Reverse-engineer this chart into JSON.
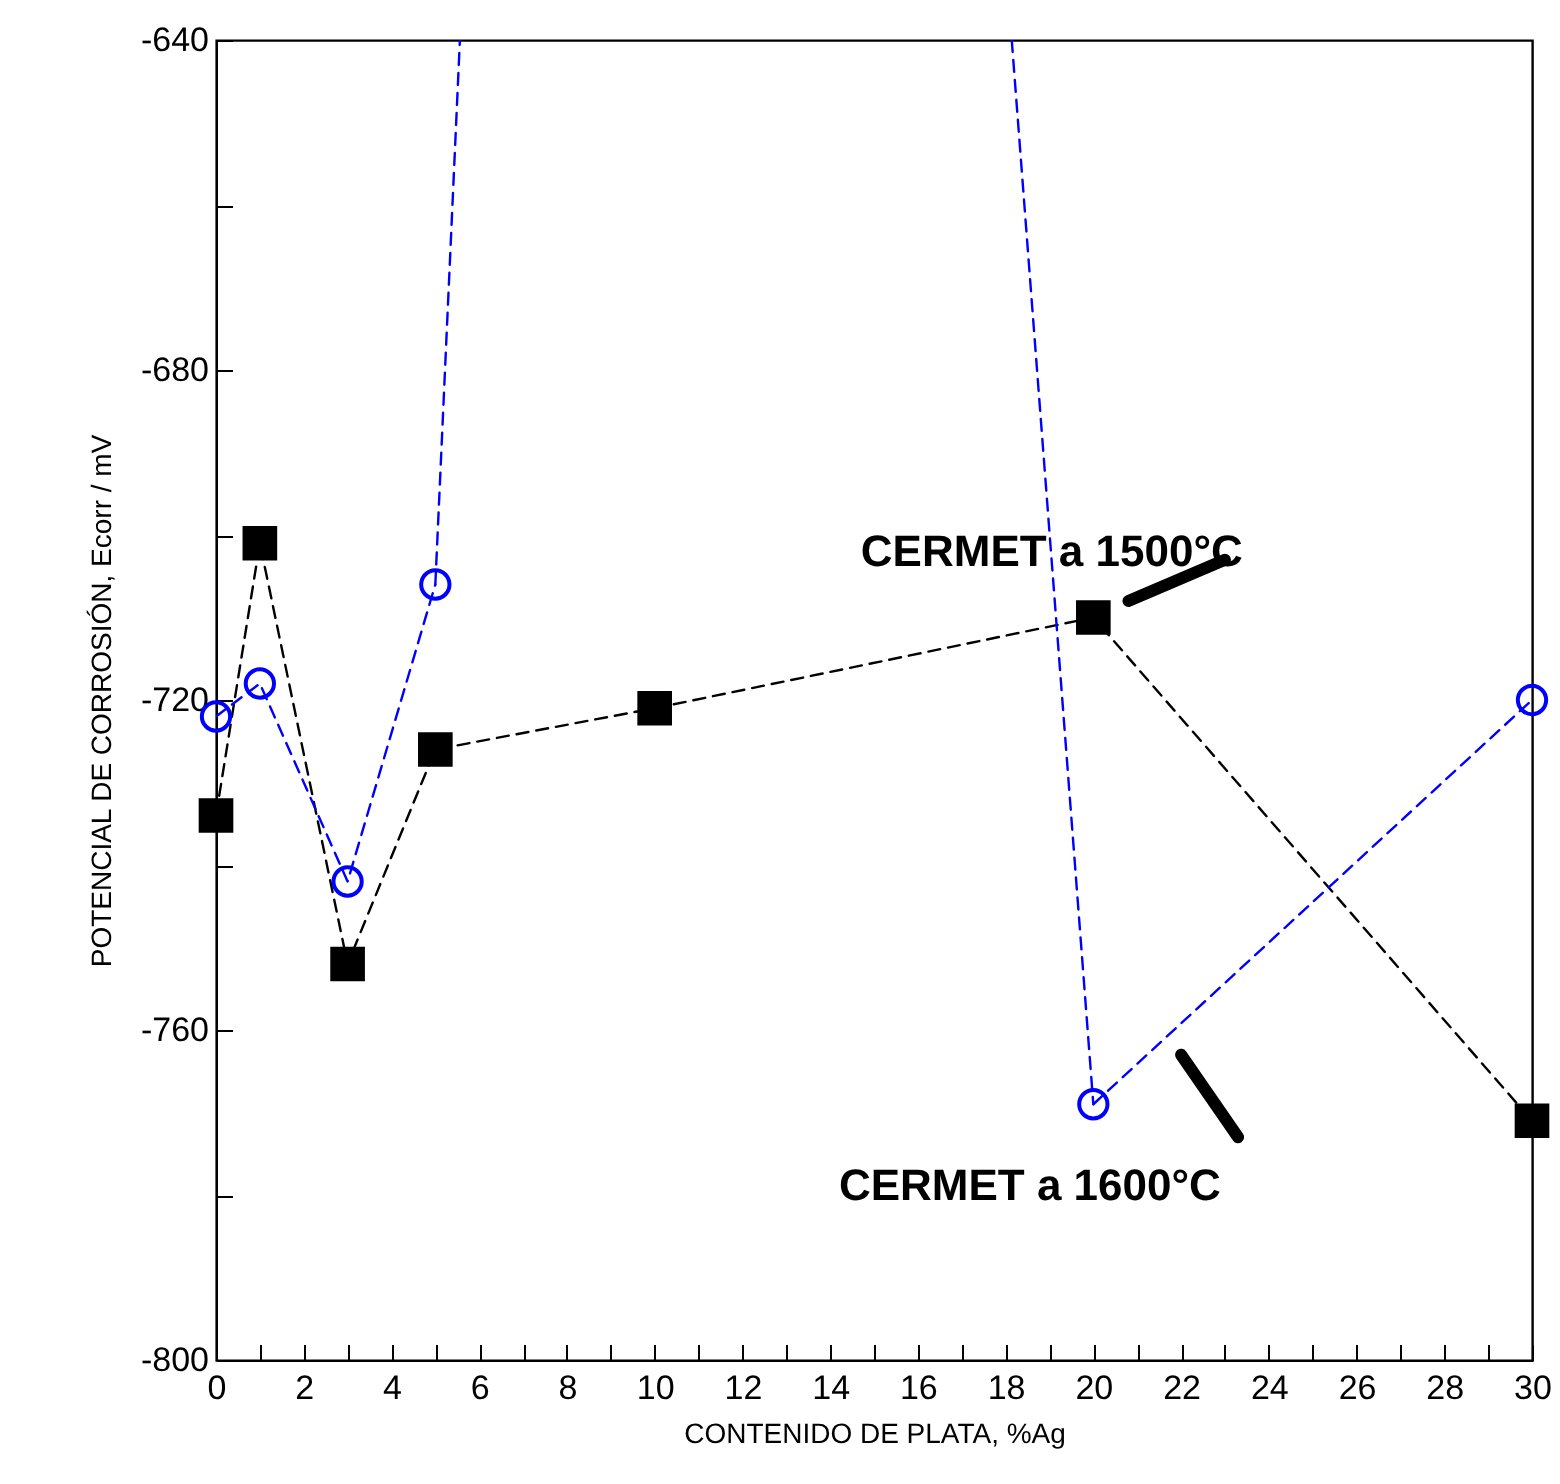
{
  "chart_data": {
    "type": "line",
    "xlabel": "CONTENIDO DE PLATA, %Ag",
    "ylabel": "POTENCIAL DE CORROSIÓN, Ecorr / mV",
    "xlim": [
      0,
      30
    ],
    "xticks": [
      0,
      {
        "value": 1,
        "label": null
      },
      2,
      {
        "value": 3,
        "label": null
      },
      4,
      {
        "value": 5,
        "label": null
      },
      6,
      {
        "value": 7,
        "label": null
      },
      8,
      {
        "value": 9,
        "label": null
      },
      10,
      {
        "value": 11,
        "label": null
      },
      12,
      {
        "value": 13,
        "label": null
      },
      14,
      {
        "value": 15,
        "label": null
      },
      16,
      {
        "value": 17,
        "label": null
      },
      18,
      {
        "value": 19,
        "label": null
      },
      20,
      {
        "value": 21,
        "label": null
      },
      22,
      {
        "value": 23,
        "label": null
      },
      24,
      {
        "value": 25,
        "label": null
      },
      26,
      {
        "value": 27,
        "label": null
      },
      28,
      {
        "value": 29,
        "label": null
      },
      30
    ],
    "ylim": [
      -800,
      -640
    ],
    "yticks": [
      -800,
      {
        "value": -780,
        "label": null
      },
      -760,
      {
        "value": -740,
        "label": null
      },
      -720,
      {
        "value": -700,
        "label": null
      },
      -680,
      {
        "value": -660,
        "label": null
      },
      -640
    ],
    "grid": false,
    "series": [
      {
        "color": "#000000",
        "marker": "square",
        "line_style": "dashed",
        "x": [
          0,
          1,
          3,
          5,
          10,
          20,
          30
        ],
        "values": [
          -734,
          -701,
          -752,
          -726,
          -721,
          -710,
          -771
        ]
      },
      {
        "color": "#0000ff",
        "marker": "circle",
        "line_style": "dashed",
        "x": [
          0,
          1,
          3,
          5,
          10,
          20,
          30
        ],
        "values": [
          -722,
          -718,
          -742,
          -706,
          null,
          -769,
          -720
        ]
      },
      {
        "color": "#0000ff",
        "marker": "none",
        "line_style": "dashed",
        "x": [
          5,
          5.56
        ],
        "values": [
          -706,
          -640
        ]
      },
      {
        "color": "#0000ff",
        "marker": "none",
        "line_style": "dashed",
        "x": [
          18.14,
          20
        ],
        "values": [
          -640,
          -769
        ]
      }
    ],
    "annotations": [
      {
        "text": "CERMET a 1500°C",
        "x": 20,
        "y": -710
      },
      {
        "text": "CERMET a 1600°C",
        "x": 21.6,
        "y": -761
      }
    ]
  }
}
